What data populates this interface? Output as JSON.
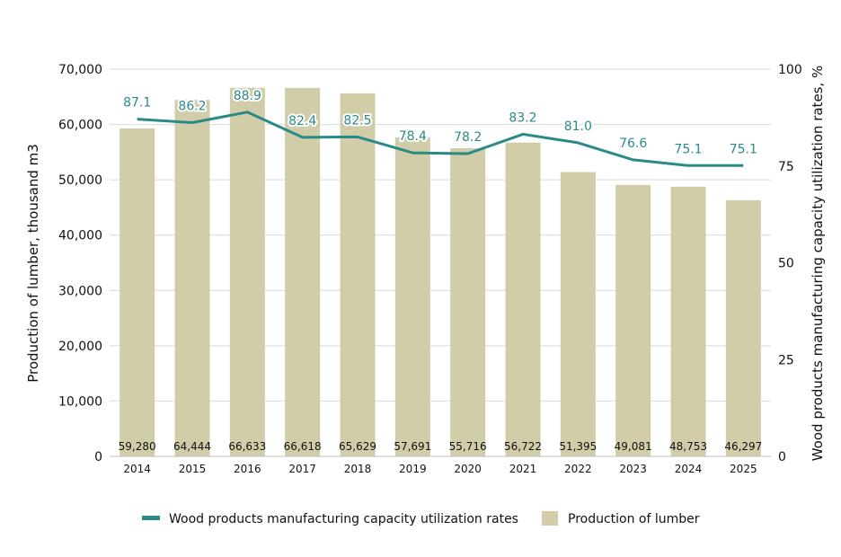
{
  "chart_data": {
    "type": "bar",
    "categories": [
      "2014",
      "2015",
      "2016",
      "2017",
      "2018",
      "2019",
      "2020",
      "2021",
      "2022",
      "2023",
      "2024",
      "2025"
    ],
    "series": [
      {
        "name": "Production of lumber",
        "type": "bar",
        "axis": "left",
        "color": "#d0cda8",
        "values": [
          59280,
          64444,
          66633,
          66618,
          65629,
          57691,
          55716,
          56722,
          51395,
          49081,
          48753,
          46297
        ],
        "labels": [
          "59,280",
          "64,444",
          "66,633",
          "66,618",
          "65,629",
          "57,691",
          "55,716",
          "56,722",
          "51,395",
          "49,081",
          "48,753",
          "46,297"
        ]
      },
      {
        "name": "Wood products manufacturing capacity utilization rates",
        "type": "line",
        "axis": "right",
        "color": "#2a8a87",
        "values": [
          87.1,
          86.2,
          88.9,
          82.4,
          82.5,
          78.4,
          78.2,
          83.2,
          81.0,
          76.6,
          75.1,
          75.1
        ],
        "labels": [
          "87.1",
          "86.2",
          "88.9",
          "82.4",
          "82.5",
          "78.4",
          "78.2",
          "83.2",
          "81.0",
          "76.6",
          "75.1",
          "75.1"
        ]
      }
    ],
    "ylabel_left": "Production of lumber, thousand m3",
    "ylabel_right": "Wood products manufacturing capacity utilization rates, %",
    "ylim_left": [
      0,
      70000
    ],
    "yticks_left": [
      "0",
      "10,000",
      "20,000",
      "30,000",
      "40,000",
      "50,000",
      "60,000",
      "70,000"
    ],
    "ylim_right": [
      0,
      100
    ],
    "yticks_right": [
      "0",
      "25",
      "50",
      "75",
      "100"
    ],
    "grid": true,
    "legend_position": "bottom"
  },
  "legend": {
    "line_label": "Wood products manufacturing capacity utilization rates",
    "bar_label": "Production of lumber"
  }
}
